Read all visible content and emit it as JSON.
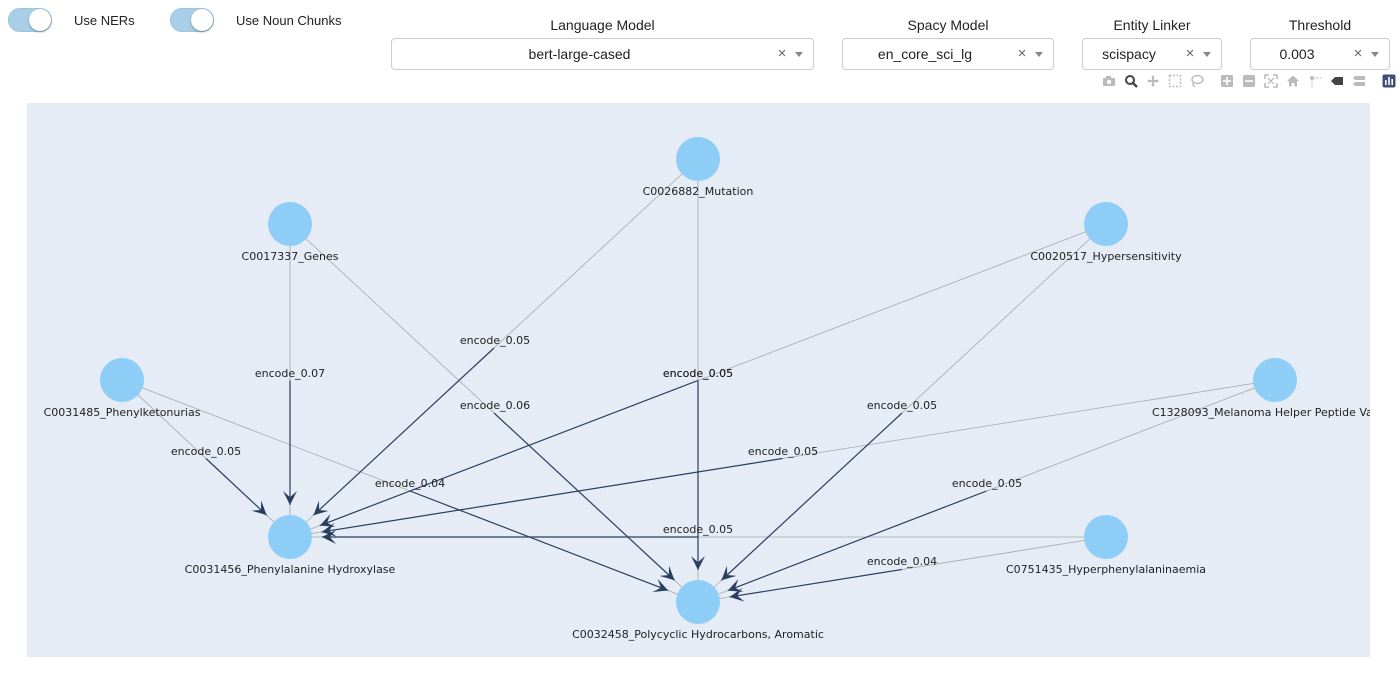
{
  "toggles": [
    {
      "label": "Use NERs",
      "on": true
    },
    {
      "label": "Use Noun Chunks",
      "on": true
    }
  ],
  "controls": {
    "language_model": {
      "title": "Language Model",
      "value": "bert-large-cased"
    },
    "spacy_model": {
      "title": "Spacy Model",
      "value": "en_core_sci_lg"
    },
    "entity_linker": {
      "title": "Entity Linker",
      "value": "scispacy"
    },
    "threshold": {
      "title": "Threshold",
      "value": "0.003"
    }
  },
  "modebar_icons": [
    "camera-icon",
    "zoom-icon",
    "pan-icon",
    "box-select-icon",
    "lasso-icon",
    "zoom-in-icon",
    "zoom-out-icon",
    "autoscale-icon",
    "home-icon",
    "spike-lines-icon",
    "hover-closest-icon",
    "hover-compare-icon",
    "plotly-logo-icon"
  ],
  "colors": {
    "node": "#8ecef6",
    "plot_bg": "#e5ecf6",
    "edge": "#a8a8a8",
    "arrow": "#2a3f5f"
  },
  "graph": {
    "nodes": [
      {
        "id": "mut",
        "label": "C0026882_Mutation"
      },
      {
        "id": "genes",
        "label": "C0017337_Genes"
      },
      {
        "id": "hyp",
        "label": "C0020517_Hypersensitivity"
      },
      {
        "id": "pku",
        "label": "C0031485_Phenylketonurias"
      },
      {
        "id": "mel",
        "label": "C1328093_Melanoma Helper Peptide Va"
      },
      {
        "id": "pah",
        "label": "C0031456_Phenylalanine Hydroxylase"
      },
      {
        "id": "hpa",
        "label": "C0751435_Hyperphenylalaninaemia"
      },
      {
        "id": "pah2",
        "label": "C0032458_Polycyclic Hydrocarbons, Aromatic"
      }
    ],
    "edges": [
      {
        "source": "genes",
        "target": "pah",
        "label": "encode_0.07"
      },
      {
        "source": "genes",
        "target": "pah2",
        "label": "encode_0.06"
      },
      {
        "source": "mut",
        "target": "pah",
        "label": "encode_0.05"
      },
      {
        "source": "mut",
        "target": "pah2",
        "label": "encode_0.05"
      },
      {
        "source": "hyp",
        "target": "pah",
        "label": "encode_0.05"
      },
      {
        "source": "hyp",
        "target": "pah2",
        "label": "encode_0.05"
      },
      {
        "source": "pku",
        "target": "pah",
        "label": "encode_0.05"
      },
      {
        "source": "pku",
        "target": "pah2",
        "label": "encode_0.04"
      },
      {
        "source": "mel",
        "target": "pah",
        "label": "encode_0.05"
      },
      {
        "source": "mel",
        "target": "pah2",
        "label": "encode_0.05"
      },
      {
        "source": "hpa",
        "target": "pah",
        "label": "encode_0.05"
      },
      {
        "source": "hpa",
        "target": "pah2",
        "label": "encode_0.04"
      }
    ]
  }
}
